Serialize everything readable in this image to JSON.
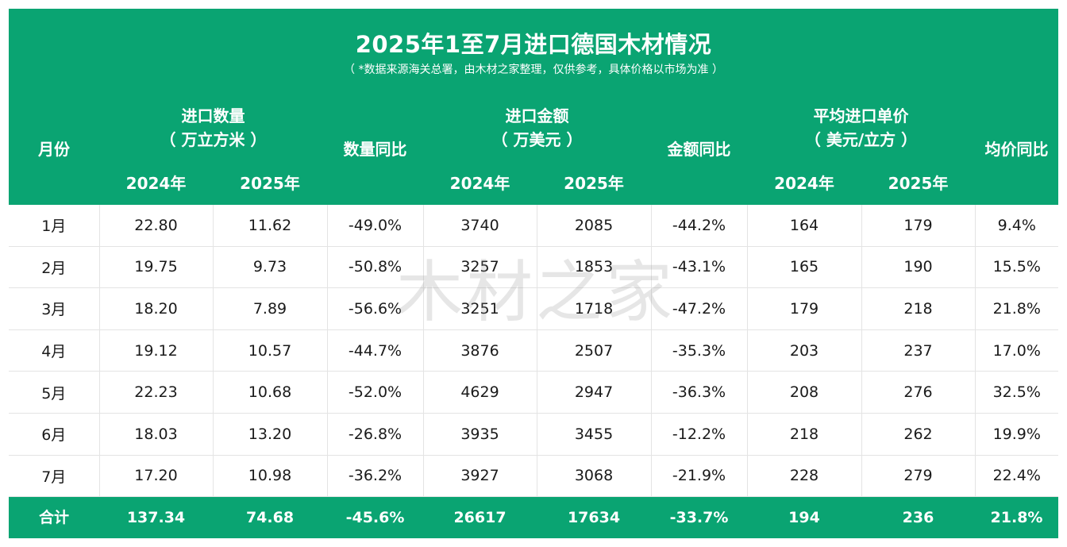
{
  "title": "2025年1至7月进口德国木材情况",
  "subtitle": "（ *数据来源海关总署，由木材之家整理，仅供参考，具体价格以市场为准 ）",
  "headers": {
    "month": "月份",
    "qty_group_line1": "进口数量",
    "qty_group_line2": "（ 万立方米 ）",
    "qty_yoy": "数量同比",
    "amt_group_line1": "进口金额",
    "amt_group_line2": "（ 万美元 ）",
    "amt_yoy": "金额同比",
    "price_group_line1": "平均进口单价",
    "price_group_line2": "（ 美元/立方 ）",
    "price_yoy": "均价同比",
    "y2024": "2024年",
    "y2025": "2025年"
  },
  "rows": [
    {
      "month": "1月",
      "q24": "22.80",
      "q25": "11.62",
      "qy": "-49.0%",
      "a24": "3740",
      "a25": "2085",
      "ay": "-44.2%",
      "p24": "164",
      "p25": "179",
      "py": "9.4%"
    },
    {
      "month": "2月",
      "q24": "19.75",
      "q25": "9.73",
      "qy": "-50.8%",
      "a24": "3257",
      "a25": "1853",
      "ay": "-43.1%",
      "p24": "165",
      "p25": "190",
      "py": "15.5%"
    },
    {
      "month": "3月",
      "q24": "18.20",
      "q25": "7.89",
      "qy": "-56.6%",
      "a24": "3251",
      "a25": "1718",
      "ay": "-47.2%",
      "p24": "179",
      "p25": "218",
      "py": "21.8%"
    },
    {
      "month": "4月",
      "q24": "19.12",
      "q25": "10.57",
      "qy": "-44.7%",
      "a24": "3876",
      "a25": "2507",
      "ay": "-35.3%",
      "p24": "203",
      "p25": "237",
      "py": "17.0%"
    },
    {
      "month": "5月",
      "q24": "22.23",
      "q25": "10.68",
      "qy": "-52.0%",
      "a24": "4629",
      "a25": "2947",
      "ay": "-36.3%",
      "p24": "208",
      "p25": "276",
      "py": "32.5%"
    },
    {
      "month": "6月",
      "q24": "18.03",
      "q25": "13.20",
      "qy": "-26.8%",
      "a24": "3935",
      "a25": "3455",
      "ay": "-12.2%",
      "p24": "218",
      "p25": "262",
      "py": "19.9%"
    },
    {
      "month": "7月",
      "q24": "17.20",
      "q25": "10.98",
      "qy": "-36.2%",
      "a24": "3927",
      "a25": "3068",
      "ay": "-21.9%",
      "p24": "228",
      "p25": "279",
      "py": "22.4%"
    }
  ],
  "total": {
    "label": "合计",
    "q24": "137.34",
    "q25": "74.68",
    "qy": "-45.6%",
    "a24": "26617",
    "a25": "17634",
    "ay": "-33.7%",
    "p24": "194",
    "p25": "236",
    "py": "21.8%"
  },
  "watermark": "木材之家",
  "colors": {
    "header_green": "#0aa472",
    "negative_green": "#13a46e",
    "positive_red": "#e8272a"
  }
}
